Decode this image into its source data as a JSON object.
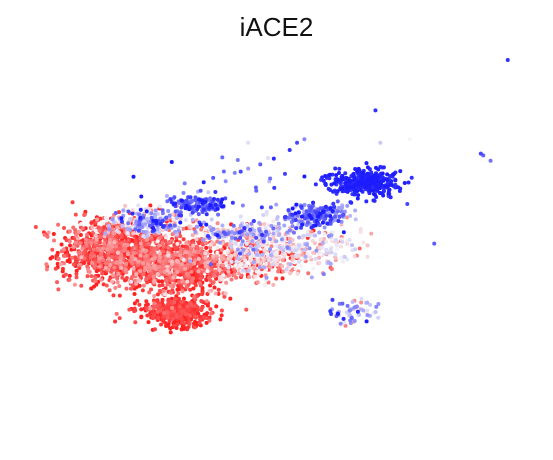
{
  "chart_data": {
    "type": "scatter",
    "title": "iACE2",
    "xlabel": "",
    "ylabel": "",
    "axes_visible": false,
    "grid": false,
    "legend": "none",
    "colormap": {
      "low": "#ff2020",
      "mid": "#f4f4f8",
      "high": "#1c1cff"
    },
    "x_range": [
      0,
      1
    ],
    "y_range": [
      0,
      1
    ],
    "clusters": [
      {
        "cx": 0.17,
        "cy": 0.47,
        "sx": 0.055,
        "sy": 0.045,
        "n": 900,
        "v": 0.08,
        "vj": 0.12
      },
      {
        "cx": 0.24,
        "cy": 0.55,
        "sx": 0.04,
        "sy": 0.018,
        "n": 250,
        "v": 0.55,
        "vj": 0.25
      },
      {
        "cx": 0.34,
        "cy": 0.6,
        "sx": 0.03,
        "sy": 0.012,
        "n": 120,
        "v": 0.85,
        "vj": 0.1
      },
      {
        "cx": 0.31,
        "cy": 0.43,
        "sx": 0.055,
        "sy": 0.04,
        "n": 800,
        "v": 0.1,
        "vj": 0.12
      },
      {
        "cx": 0.3,
        "cy": 0.3,
        "sx": 0.035,
        "sy": 0.018,
        "n": 450,
        "v": 0.02,
        "vj": 0.06
      },
      {
        "cx": 0.46,
        "cy": 0.45,
        "sx": 0.05,
        "sy": 0.03,
        "n": 350,
        "v": 0.3,
        "vj": 0.2
      },
      {
        "cx": 0.44,
        "cy": 0.52,
        "sx": 0.05,
        "sy": 0.015,
        "n": 200,
        "v": 0.55,
        "vj": 0.2
      },
      {
        "cx": 0.58,
        "cy": 0.48,
        "sx": 0.05,
        "sy": 0.03,
        "n": 180,
        "v": 0.47,
        "vj": 0.15
      },
      {
        "cx": 0.58,
        "cy": 0.57,
        "sx": 0.04,
        "sy": 0.015,
        "n": 200,
        "v": 0.8,
        "vj": 0.15
      },
      {
        "cx": 0.68,
        "cy": 0.66,
        "sx": 0.035,
        "sy": 0.018,
        "n": 350,
        "v": 0.97,
        "vj": 0.03
      },
      {
        "cx": 0.66,
        "cy": 0.3,
        "sx": 0.025,
        "sy": 0.02,
        "n": 60,
        "v": 0.65,
        "vj": 0.2
      },
      {
        "cx": 0.38,
        "cy": 0.62,
        "sx": 0.08,
        "sy": 0.06,
        "n": 40,
        "v": 0.85,
        "vj": 0.15
      }
    ],
    "outliers": [
      {
        "x": 0.975,
        "y": 1.0,
        "v": 0.95
      },
      {
        "x": 0.705,
        "y": 0.86,
        "v": 0.95
      },
      {
        "x": 0.715,
        "y": 0.77,
        "v": 0.6
      },
      {
        "x": 0.56,
        "y": 0.78,
        "v": 0.75
      },
      {
        "x": 0.545,
        "y": 0.77,
        "v": 0.9
      },
      {
        "x": 0.445,
        "y": 0.77,
        "v": 0.55
      },
      {
        "x": 0.775,
        "y": 0.78,
        "v": 0.5
      },
      {
        "x": 0.92,
        "y": 0.74,
        "v": 0.9
      },
      {
        "x": 0.925,
        "y": 0.735,
        "v": 0.85
      },
      {
        "x": 0.94,
        "y": 0.72,
        "v": 0.8
      },
      {
        "x": 0.53,
        "y": 0.75,
        "v": 0.95
      },
      {
        "x": 0.43,
        "y": 0.69,
        "v": 0.9
      },
      {
        "x": 0.47,
        "y": 0.71,
        "v": 0.85
      },
      {
        "x": 0.825,
        "y": 0.49,
        "v": 0.85
      },
      {
        "x": 0.77,
        "y": 0.6,
        "v": 0.9
      }
    ]
  }
}
